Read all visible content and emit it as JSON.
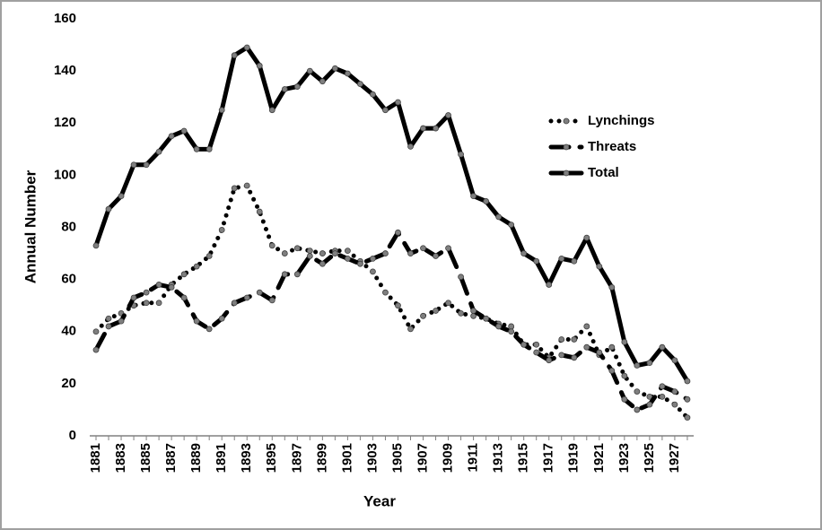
{
  "chart_data": {
    "type": "line",
    "x_label": "Year",
    "y_label": "Annual Number",
    "categories": [
      "1881",
      null,
      "1883",
      null,
      "1885",
      null,
      "1887",
      null,
      "1889",
      null,
      "1891",
      null,
      "1893",
      null,
      "1895",
      null,
      "1897",
      null,
      "1899",
      null,
      "1901",
      null,
      "1903",
      null,
      "1905",
      null,
      "1907",
      null,
      "1909",
      null,
      "1911",
      null,
      "1913",
      null,
      "1915",
      null,
      "1917",
      null,
      "1919",
      null,
      "1921",
      null,
      "1923",
      null,
      "1925",
      null,
      "1927",
      null
    ],
    "series": [
      {
        "name": "Lynchings",
        "color": "#000000",
        "dash": "dotted",
        "marker_color": "#7f7f7f",
        "values": [
          40,
          45,
          47,
          50,
          51,
          51,
          58,
          62,
          65,
          69,
          79,
          95,
          96,
          86,
          73,
          70,
          72,
          71,
          70,
          71,
          71,
          67,
          63,
          55,
          50,
          41,
          46,
          48,
          51,
          47,
          46,
          45,
          43,
          42,
          35,
          35,
          30,
          37,
          37,
          42,
          31,
          34,
          23,
          17,
          15,
          15,
          12,
          7
        ]
      },
      {
        "name": "Threats",
        "color": "#000000",
        "dash": "dashed",
        "marker_color": "#7f7f7f",
        "values": [
          33,
          42,
          44,
          53,
          55,
          58,
          57,
          53,
          44,
          41,
          45,
          51,
          53,
          55,
          52,
          62,
          62,
          69,
          66,
          70,
          68,
          66,
          68,
          70,
          78,
          70,
          72,
          69,
          72,
          61,
          48,
          45,
          42,
          40,
          35,
          32,
          29,
          31,
          30,
          34,
          32,
          25,
          14,
          10,
          12,
          19,
          17,
          14
        ]
      },
      {
        "name": "Total",
        "color": "#000000",
        "dash": "solid",
        "marker_color": "#7f7f7f",
        "values": [
          73,
          87,
          92,
          104,
          104,
          109,
          115,
          117,
          110,
          110,
          125,
          146,
          149,
          142,
          125,
          133,
          134,
          140,
          136,
          141,
          139,
          135,
          131,
          125,
          128,
          111,
          118,
          118,
          123,
          108,
          92,
          90,
          84,
          81,
          70,
          67,
          58,
          68,
          67,
          76,
          65,
          57,
          36,
          27,
          28,
          34,
          29,
          21
        ]
      }
    ],
    "ylim": [
      0,
      160
    ],
    "yticks": [
      0,
      20,
      40,
      60,
      80,
      100,
      120,
      140,
      160
    ],
    "grid": false,
    "legend": "upper right"
  }
}
